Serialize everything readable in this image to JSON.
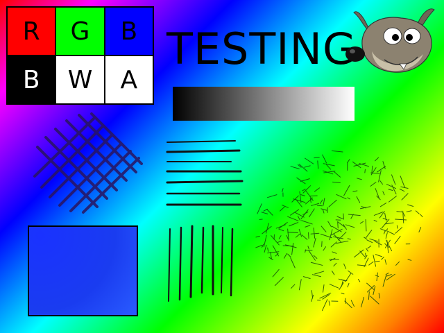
{
  "grid": {
    "cells": [
      {
        "label": "R",
        "bg": "#ff0000",
        "fg": "#000000"
      },
      {
        "label": "G",
        "bg": "#00ff00",
        "fg": "#000000"
      },
      {
        "label": "B",
        "bg": "#0000ff",
        "fg": "#000000"
      },
      {
        "label": "B",
        "bg": "#000000",
        "fg": "#ffffff"
      },
      {
        "label": "W",
        "bg": "#ffffff",
        "fg": "#000000"
      },
      {
        "label": "A",
        "bg": "#ffffff",
        "fg": "#000000"
      }
    ]
  },
  "title": "TESTING",
  "icons": {
    "mascot": "gimp-mascot-icon"
  },
  "colors": {
    "gradient_stops": [
      "#ff0000",
      "#ff00ff",
      "#0000ff",
      "#00ffff",
      "#00ff00",
      "#ffff00",
      "#ff8000"
    ],
    "noise_rect": "#1a3cf0",
    "stroke": "#000000"
  }
}
